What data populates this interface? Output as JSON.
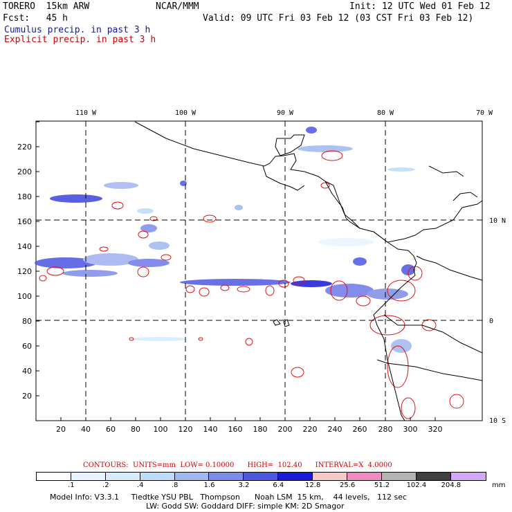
{
  "header": {
    "model": "TORERO  15km ARW",
    "org": "NCAR/MMM",
    "init": "Init: 12 UTC Wed 01 Feb 12",
    "fcst": "Fcst:   45 h",
    "valid": "Valid: 09 UTC Fri 03 Feb 12 (03 CST Fri 03 Feb 12)",
    "cumulus": "Cumulus precip. in past 3 h",
    "explicit": "Explicit precip. in past 3 h"
  },
  "map": {
    "x_ticks": [
      "20",
      "40",
      "60",
      "80",
      "100",
      "120",
      "140",
      "160",
      "180",
      "200",
      "220",
      "240",
      "260",
      "280",
      "300",
      "320"
    ],
    "y_ticks": [
      "20",
      "40",
      "60",
      "80",
      "100",
      "120",
      "140",
      "160",
      "180",
      "200",
      "220"
    ],
    "lon_labels": [
      "110 W",
      "100 W",
      "90 W",
      "80 W",
      "70 W"
    ],
    "lat_labels": [
      "10 N",
      "0",
      "10 S"
    ]
  },
  "contour_line": "CONTOURS:  UNITS=mm  LOW= 0.10000      HIGH=  102.40      INTERVAL=X  4.0000",
  "colorbar": {
    "colors": [
      "#ffffff",
      "#e8f4ff",
      "#d4ecfc",
      "#bcdcf8",
      "#a0b8f0",
      "#7c8ce8",
      "#4d58e0",
      "#1a1ad8",
      "#f6c8c8",
      "#f08cc0",
      "#b4b4b4",
      "#404040",
      "#d4a8f8"
    ],
    "labels": [
      ".1",
      ".2",
      ".4",
      ".8",
      "1.6",
      "3.2",
      "6.4",
      "12.8",
      "25.6",
      "51.2",
      "102.4",
      "204.8"
    ],
    "unit": "mm"
  },
  "model_info": {
    "line1": "Model Info: V3.3.1     Tiedtke YSU PBL   Thompson      Noah LSM  15 km,    44 levels,   112 sec",
    "line2": "LW: Godd SW: Goddard DIFF: simple KM: 2D Smagor"
  }
}
